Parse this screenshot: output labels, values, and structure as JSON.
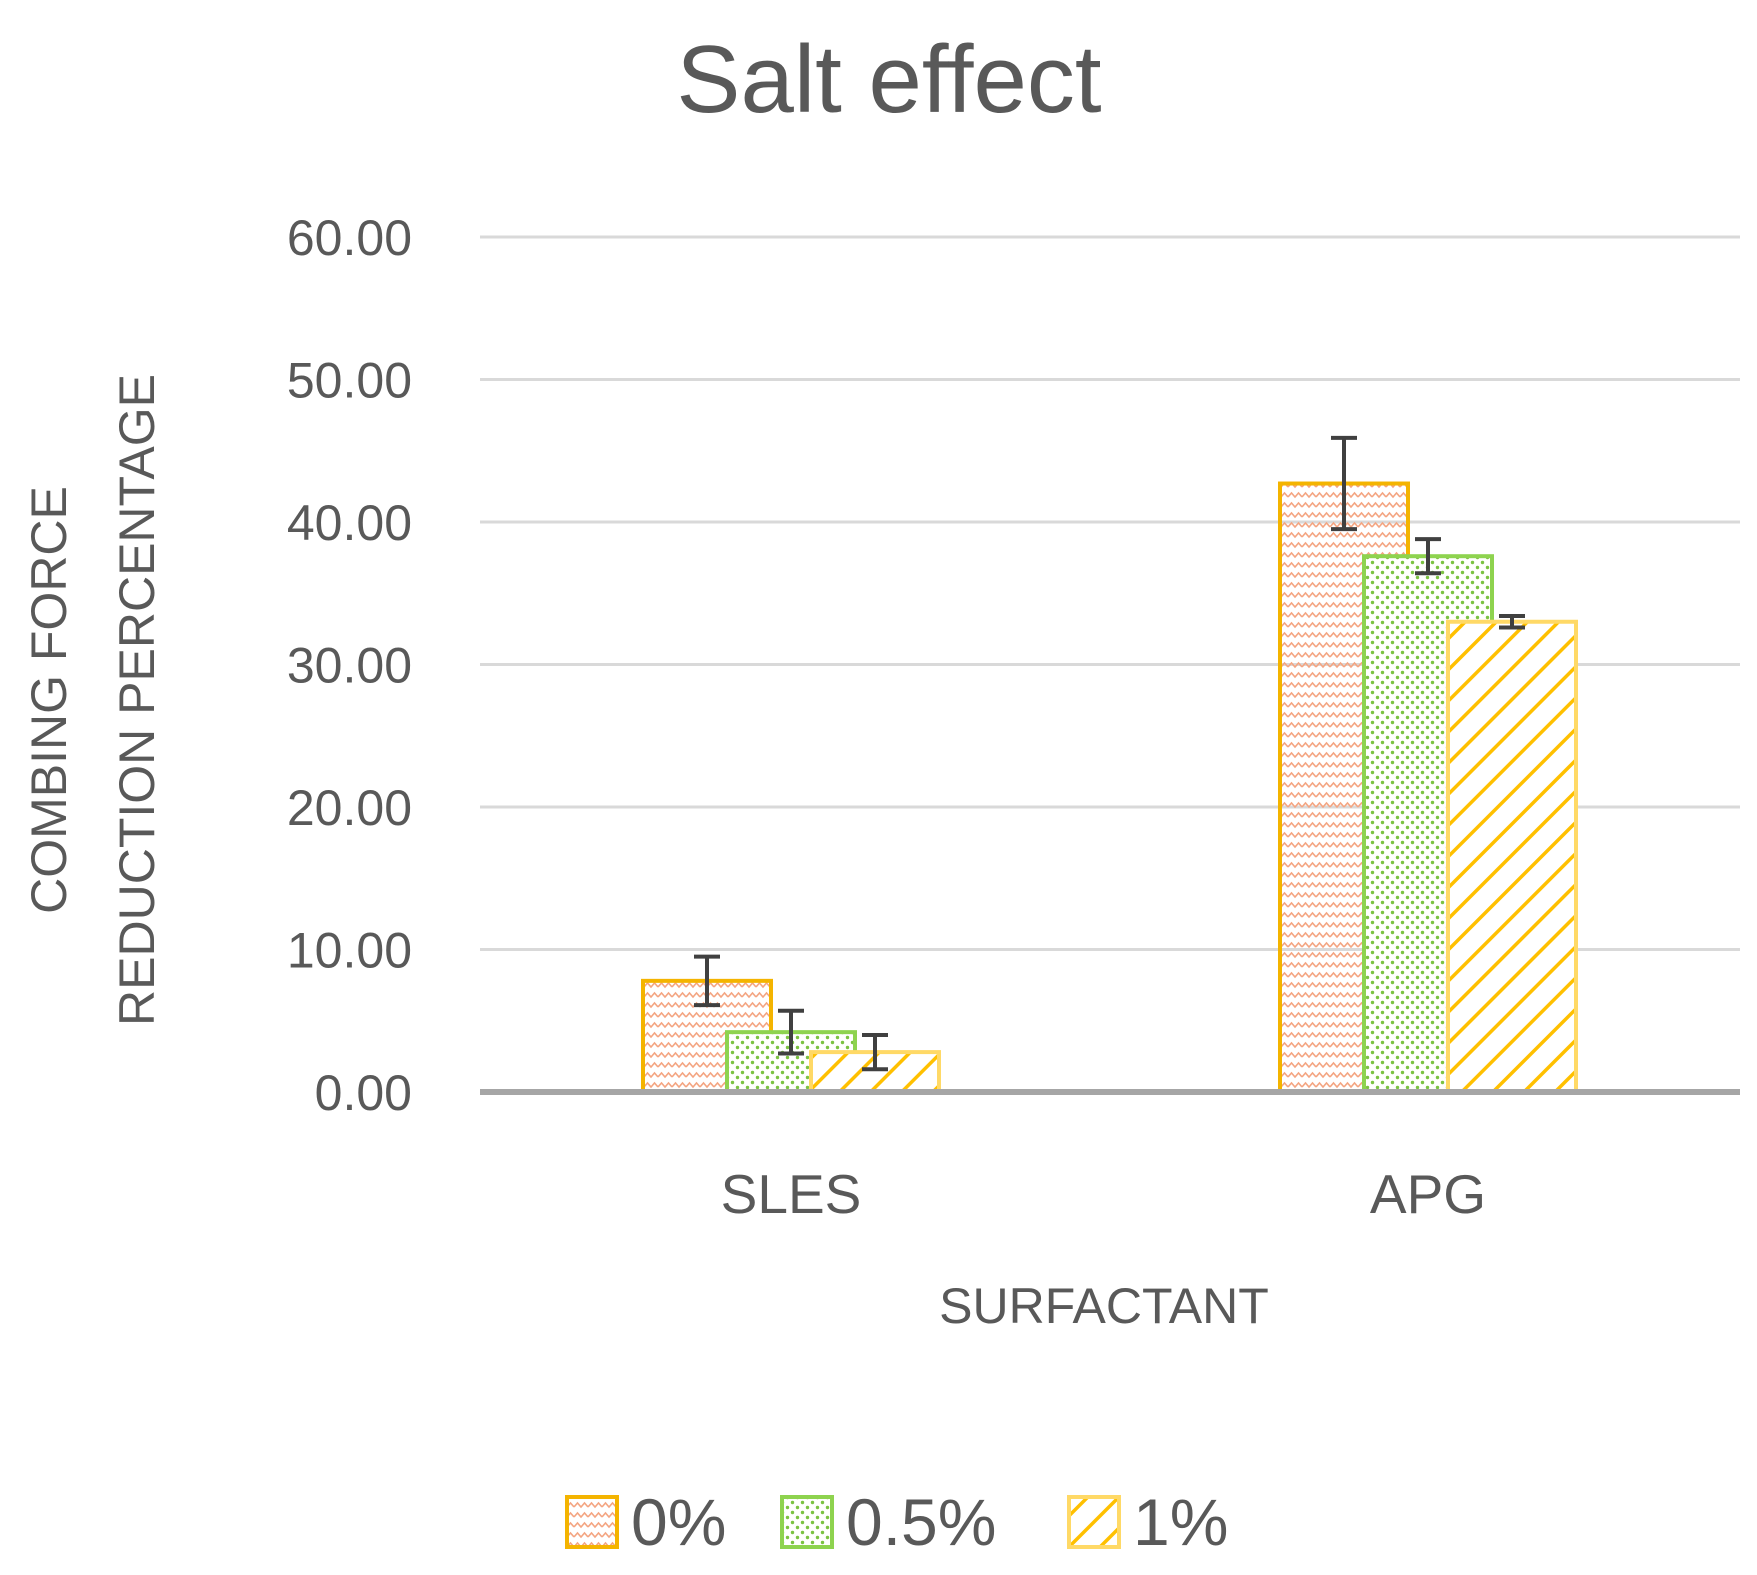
{
  "chart_data": {
    "type": "bar",
    "title": "Salt effect",
    "xlabel": "SURFACTANT",
    "ylabel": [
      "COMBING FORCE",
      "REDUCTION PERCENTAGE"
    ],
    "categories": [
      "SLES",
      "APG"
    ],
    "ylim": [
      0,
      60
    ],
    "yticks": [
      "0.00",
      "10.00",
      "20.00",
      "30.00",
      "40.00",
      "50.00",
      "60.00"
    ],
    "grid": true,
    "legend_position": "bottom",
    "series": [
      {
        "name": "0%",
        "values": [
          7.8,
          42.7
        ],
        "errors": [
          1.7,
          3.2
        ],
        "stroke": "#f4b400",
        "pattern_color": "#f4a582",
        "pattern": "zigzag"
      },
      {
        "name": "0.5%",
        "values": [
          4.2,
          37.6
        ],
        "errors": [
          1.5,
          1.2
        ],
        "stroke": "#8ed34f",
        "pattern_color": "#7cc242",
        "pattern": "dots"
      },
      {
        "name": "1%",
        "values": [
          2.8,
          33.0
        ],
        "errors": [
          1.2,
          0.4
        ],
        "stroke": "#ffd966",
        "pattern_color": "#ffc000",
        "pattern": "diagonal"
      }
    ]
  }
}
